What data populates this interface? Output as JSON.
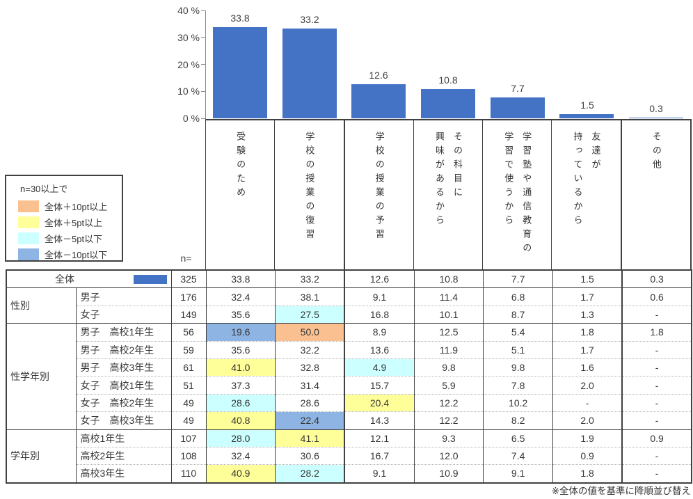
{
  "chart_data": {
    "type": "bar",
    "title": "",
    "series_name": "全体",
    "categories": [
      "受験のため",
      "学校の授業の復習",
      "学校の授業の予習",
      "その科目に興味があるから",
      "学習塾や通信教育の学習で使うから",
      "友達が持っているから",
      "その他"
    ],
    "category_label_lines": [
      [
        "受験のため"
      ],
      [
        "学校の授業の復習"
      ],
      [
        "学校の授業の予習"
      ],
      [
        "その科目に",
        "興味があるから"
      ],
      [
        "学習塾や通信教育の",
        "学習で使うから"
      ],
      [
        "友達が",
        "持っているから"
      ],
      [
        "その他"
      ]
    ],
    "values": [
      33.8,
      33.2,
      12.6,
      10.8,
      7.7,
      1.5,
      0.3
    ],
    "ylim": [
      0,
      40
    ],
    "yticks": [
      0,
      10,
      20,
      30,
      40
    ],
    "ytick_labels": [
      "0 %",
      "10 %",
      "20 %",
      "30 %",
      "40 %"
    ],
    "grid": false,
    "legend_position": "none"
  },
  "colors": {
    "bar": "#4472C4",
    "plus10": "#FAC090",
    "plus5": "#FFFF99",
    "minus5": "#CCFFFF",
    "minus10": "#8DB4E2"
  },
  "legend": {
    "title": "n=30以上で",
    "items": [
      {
        "label": "全体＋10pt以上",
        "color_key": "plus10"
      },
      {
        "label": "全体＋5pt以上",
        "color_key": "plus5"
      },
      {
        "label": "全体－5pt以下",
        "color_key": "minus5"
      },
      {
        "label": "全体－10pt以下",
        "color_key": "minus10"
      }
    ]
  },
  "table": {
    "n_header": "n=",
    "overall_row": {
      "label": "全体",
      "n": "325",
      "values": [
        "33.8",
        "33.2",
        "12.6",
        "10.8",
        "7.7",
        "1.5",
        "0.3"
      ],
      "highlights": [
        null,
        null,
        null,
        null,
        null,
        null,
        null
      ]
    },
    "groups": [
      {
        "name": "性別",
        "rows": [
          {
            "label": "男子",
            "n": "176",
            "values": [
              "32.4",
              "38.1",
              "9.1",
              "11.4",
              "6.8",
              "1.7",
              "0.6"
            ],
            "highlights": [
              null,
              null,
              null,
              null,
              null,
              null,
              null
            ]
          },
          {
            "label": "女子",
            "n": "149",
            "values": [
              "35.6",
              "27.5",
              "16.8",
              "10.1",
              "8.7",
              "1.3",
              "-"
            ],
            "highlights": [
              null,
              "minus5",
              null,
              null,
              null,
              null,
              null
            ]
          }
        ]
      },
      {
        "name": "性学年別",
        "rows": [
          {
            "label": "男子　高校1年生",
            "n": "56",
            "values": [
              "19.6",
              "50.0",
              "8.9",
              "12.5",
              "5.4",
              "1.8",
              "1.8"
            ],
            "highlights": [
              "minus10",
              "plus10",
              null,
              null,
              null,
              null,
              null
            ]
          },
          {
            "label": "男子　高校2年生",
            "n": "59",
            "values": [
              "35.6",
              "32.2",
              "13.6",
              "11.9",
              "5.1",
              "1.7",
              "-"
            ],
            "highlights": [
              null,
              null,
              null,
              null,
              null,
              null,
              null
            ]
          },
          {
            "label": "男子　高校3年生",
            "n": "61",
            "values": [
              "41.0",
              "32.8",
              "4.9",
              "9.8",
              "9.8",
              "1.6",
              "-"
            ],
            "highlights": [
              "plus5",
              null,
              "minus5",
              null,
              null,
              null,
              null
            ]
          },
          {
            "label": "女子　高校1年生",
            "n": "51",
            "values": [
              "37.3",
              "31.4",
              "15.7",
              "5.9",
              "7.8",
              "2.0",
              "-"
            ],
            "highlights": [
              null,
              null,
              null,
              null,
              null,
              null,
              null
            ]
          },
          {
            "label": "女子　高校2年生",
            "n": "49",
            "values": [
              "28.6",
              "28.6",
              "20.4",
              "12.2",
              "10.2",
              "-",
              "-"
            ],
            "highlights": [
              "minus5",
              null,
              "plus5",
              null,
              null,
              null,
              null
            ]
          },
          {
            "label": "女子　高校3年生",
            "n": "49",
            "values": [
              "40.8",
              "22.4",
              "14.3",
              "12.2",
              "8.2",
              "2.0",
              "-"
            ],
            "highlights": [
              "plus5",
              "minus10",
              null,
              null,
              null,
              null,
              null
            ]
          }
        ]
      },
      {
        "name": "学年別",
        "rows": [
          {
            "label": "高校1年生",
            "n": "107",
            "values": [
              "28.0",
              "41.1",
              "12.1",
              "9.3",
              "6.5",
              "1.9",
              "0.9"
            ],
            "highlights": [
              "minus5",
              "plus5",
              null,
              null,
              null,
              null,
              null
            ]
          },
          {
            "label": "高校2年生",
            "n": "108",
            "values": [
              "32.4",
              "30.6",
              "16.7",
              "12.0",
              "7.4",
              "0.9",
              "-"
            ],
            "highlights": [
              null,
              null,
              null,
              null,
              null,
              null,
              null
            ]
          },
          {
            "label": "高校3年生",
            "n": "110",
            "values": [
              "40.9",
              "28.2",
              "9.1",
              "10.9",
              "9.1",
              "1.8",
              "-"
            ],
            "highlights": [
              "plus5",
              "minus5",
              null,
              null,
              null,
              null,
              null
            ]
          }
        ]
      }
    ]
  },
  "footer_note": "※全体の値を基準に降順並び替え"
}
